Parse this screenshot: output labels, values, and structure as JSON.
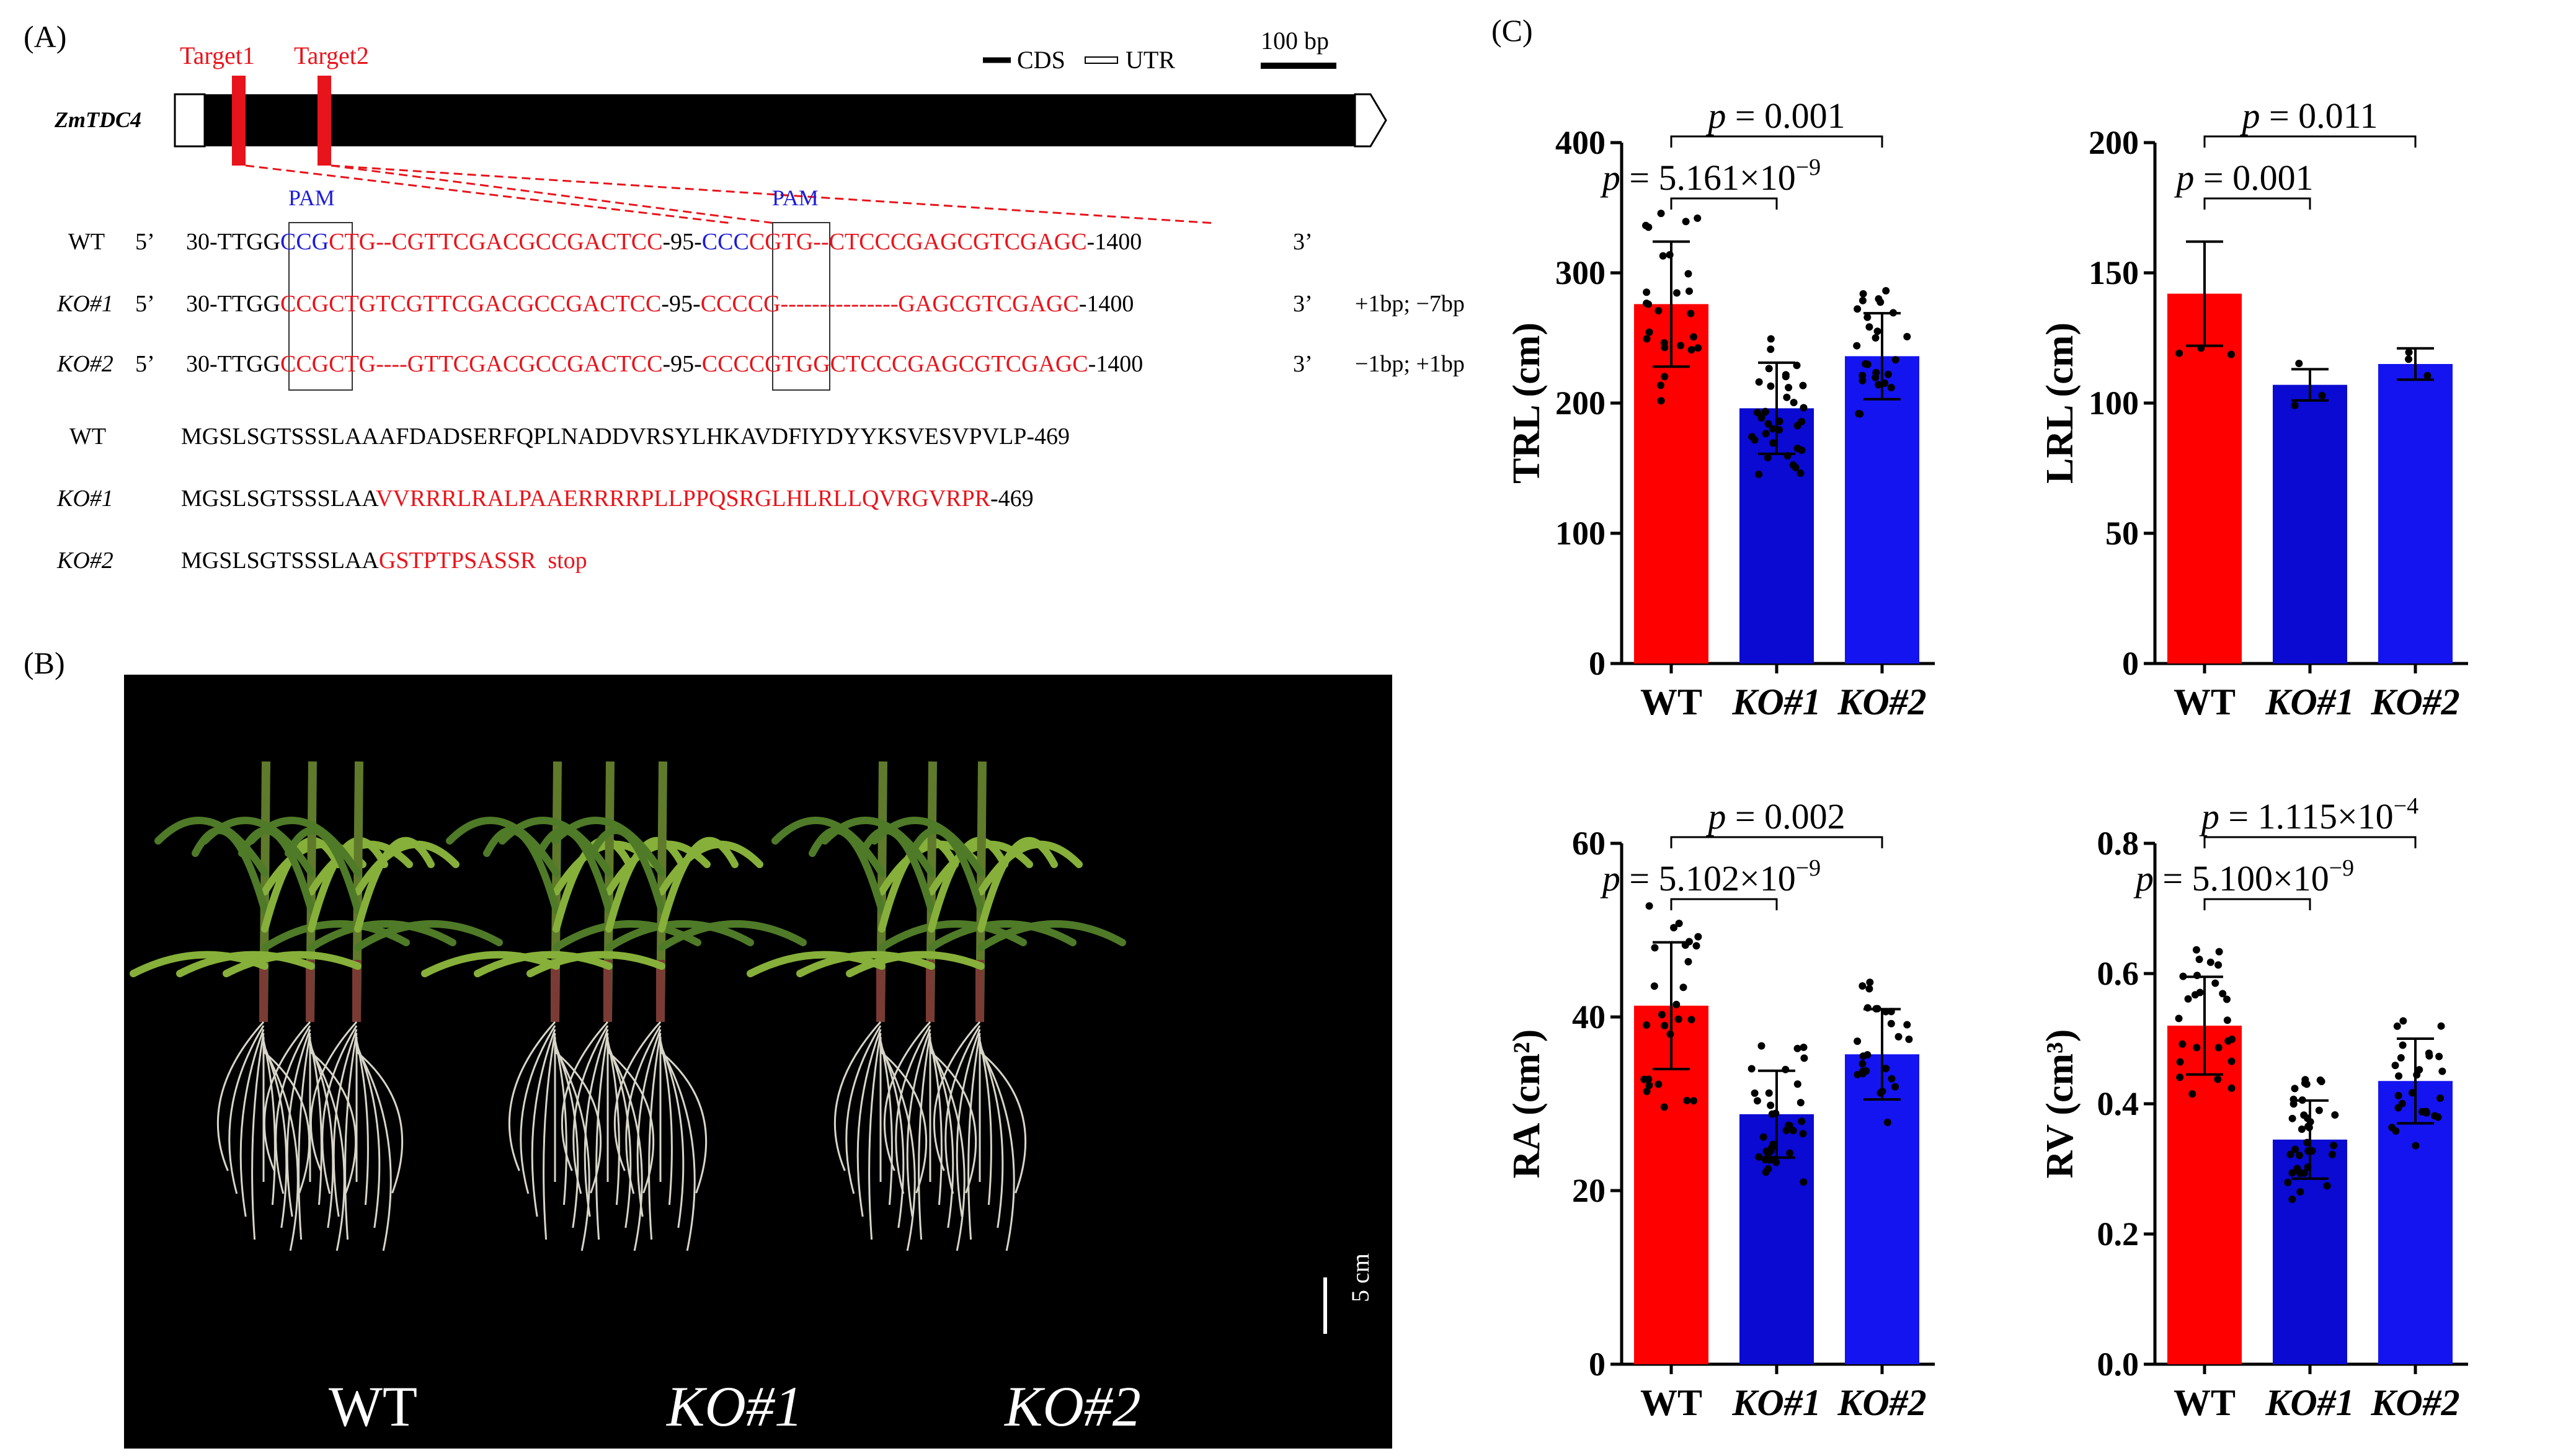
{
  "panel_labels": {
    "a": "(A)",
    "b": "(B)",
    "c": "(C)"
  },
  "gene": {
    "name": "ZmTDC4",
    "target1": "Target1",
    "target2": "Target2",
    "legend_cds": "CDS",
    "legend_utr": "UTR",
    "scale_label": "100 bp",
    "pam": "PAM"
  },
  "dna": [
    {
      "name": "WT",
      "five": "5’",
      "pre": "30-TTGG",
      "pam1": "CCG",
      "seg1": "CTG--CGTTCGACGCCGACTCC",
      "mid": "-95-",
      "pam2": "CCC",
      "seg2": "CGTG--CTCCCGAGCGTCGAGC",
      "end": "-1400",
      "three": "3’",
      "note": ""
    },
    {
      "name": "KO#1",
      "five": "5’",
      "pre": "30-TTGG",
      "pam1": "CCG",
      "seg1": "CTGTCGTTCGACGCCGACTCC",
      "mid": "-95-",
      "pam2": "CCC",
      "seg2": "CG---------------GAGCGTCGAGC",
      "end": "-1400",
      "three": "3’",
      "note": "+1bp; −7bp"
    },
    {
      "name": "KO#2",
      "five": "5’",
      "pre": "30-TTGG",
      "pam1": "CCG",
      "seg1": "CTG----GTTCGACGCCGACTCC",
      "mid": "-95-",
      "pam2": "CCC",
      "seg2": "CGTGGCTCCCGAGCGTCGAGC",
      "end": "-1400",
      "three": "3’",
      "note": "−1bp; +1bp"
    }
  ],
  "protein": [
    {
      "name": "WT",
      "black": "MGSLSGTSSSLAAAFDADSERFQPLNADDVRSYLHKAVDFIYDYYKSVESVPVLP",
      "red": "",
      "end": "-469"
    },
    {
      "name": "KO#1",
      "black": "MGSLSGTSSSLAA",
      "red": "VVRRRLRALPAAERRRRPLLPPQSRGLHLRLLQVRGVRPR",
      "end": "-469"
    },
    {
      "name": "KO#2",
      "black": "MGSLSGTSSSLAA",
      "red": "GSTPTPSASSR  stop",
      "end": ""
    }
  ],
  "photo": {
    "wt": "WT",
    "ko1": "KO#1",
    "ko2": "KO#2",
    "scale": "5 cm"
  },
  "colors": {
    "wt": "#ff0000",
    "ko1": "#0a0ad2",
    "ko2": "#1414f0",
    "highlight": "#e8141b",
    "pam": "#1c1cd8"
  },
  "chart_data": [
    {
      "type": "bar",
      "ylabel": "TRL (cm)",
      "categories": [
        "WT",
        "KO#1",
        "KO#2"
      ],
      "values": [
        276,
        196,
        236
      ],
      "sd": [
        48,
        35,
        33
      ],
      "ylim": [
        0,
        400
      ],
      "yticks": [
        0,
        100,
        200,
        300,
        400
      ],
      "comparisons": [
        {
          "text": "p = 5.161×10",
          "exp": "−9",
          "from": 0,
          "to": 1
        },
        {
          "text": "p = 0.001",
          "exp": "",
          "from": 0,
          "to": 2
        }
      ]
    },
    {
      "type": "bar",
      "ylabel": "LRL (cm)",
      "categories": [
        "WT",
        "KO#1",
        "KO#2"
      ],
      "values": [
        142,
        107,
        115
      ],
      "sd": [
        20,
        6,
        6
      ],
      "ylim": [
        0,
        200
      ],
      "yticks": [
        0,
        50,
        100,
        150,
        200
      ],
      "comparisons": [
        {
          "text": "p = 0.001",
          "exp": "",
          "from": 0,
          "to": 1
        },
        {
          "text": "p = 0.011",
          "exp": "",
          "from": 0,
          "to": 2
        }
      ]
    },
    {
      "type": "bar",
      "ylabel": "RA (cm²)",
      "categories": [
        "WT",
        "KO#1",
        "KO#2"
      ],
      "values": [
        41.3,
        28.8,
        35.7
      ],
      "sd": [
        7.3,
        5.0,
        5.2
      ],
      "ylim": [
        0,
        60
      ],
      "yticks": [
        0,
        20,
        40,
        60
      ],
      "comparisons": [
        {
          "text": "p = 5.102×10",
          "exp": "−9",
          "from": 0,
          "to": 1
        },
        {
          "text": "p = 0.002",
          "exp": "",
          "from": 0,
          "to": 2
        }
      ]
    },
    {
      "type": "bar",
      "ylabel": "RV (cm³)",
      "categories": [
        "WT",
        "KO#1",
        "KO#2"
      ],
      "values": [
        0.52,
        0.345,
        0.435
      ],
      "sd": [
        0.075,
        0.06,
        0.065
      ],
      "ylim": [
        0,
        0.8
      ],
      "yticks": [
        "0.0",
        "0.2",
        "0.4",
        "0.6",
        "0.8"
      ],
      "comparisons": [
        {
          "text": "p = 5.100×10",
          "exp": "−9",
          "from": 0,
          "to": 1
        },
        {
          "text": "p = 1.115×10",
          "exp": "−4",
          "from": 0,
          "to": 2
        }
      ]
    }
  ]
}
